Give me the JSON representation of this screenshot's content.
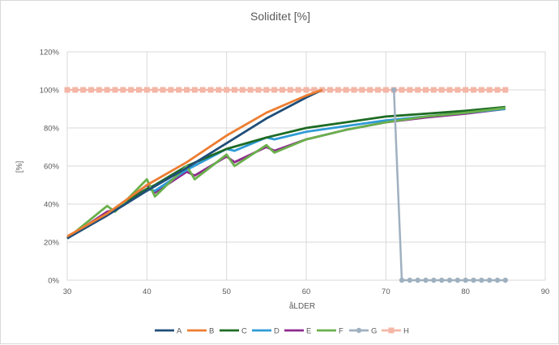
{
  "chart_data": {
    "type": "line",
    "title": "Soliditet [%]",
    "xlabel": "åLDER",
    "ylabel": "[%]",
    "xlim": [
      30,
      90
    ],
    "ylim": [
      0,
      1.2
    ],
    "x_ticks": [
      "30",
      "40",
      "50",
      "60",
      "70",
      "80",
      "90"
    ],
    "y_ticks": [
      "0%",
      "20%",
      "40%",
      "60%",
      "80%",
      "100%",
      "120%"
    ],
    "grid": "vertical and horizontal major gridlines",
    "legend_position": "bottom",
    "series": [
      {
        "name": "A",
        "color": "#1f4e79",
        "marker": "none",
        "x": [
          30,
          35,
          40,
          45,
          50,
          55,
          60,
          62
        ],
        "y": [
          0.22,
          0.34,
          0.47,
          0.59,
          0.72,
          0.85,
          0.96,
          1.0
        ]
      },
      {
        "name": "B",
        "color": "#ed7d31",
        "marker": "none",
        "x": [
          30,
          35,
          40,
          45,
          50,
          55,
          60,
          62
        ],
        "y": [
          0.23,
          0.35,
          0.5,
          0.62,
          0.76,
          0.88,
          0.97,
          1.0
        ]
      },
      {
        "name": "C",
        "color": "#1e6b24",
        "marker": "none",
        "x": [
          30,
          35,
          40,
          41,
          45,
          50,
          55,
          60,
          65,
          70,
          75,
          80,
          85
        ],
        "y": [
          0.22,
          0.35,
          0.48,
          0.5,
          0.6,
          0.69,
          0.75,
          0.8,
          0.83,
          0.86,
          0.875,
          0.89,
          0.91
        ]
      },
      {
        "name": "D",
        "color": "#2e9bd6",
        "marker": "none",
        "x": [
          30,
          35,
          40,
          41,
          45,
          50,
          51,
          55,
          56,
          60,
          65,
          70,
          75,
          80,
          85
        ],
        "y": [
          0.22,
          0.35,
          0.48,
          0.47,
          0.58,
          0.69,
          0.68,
          0.75,
          0.74,
          0.78,
          0.81,
          0.84,
          0.86,
          0.88,
          0.9
        ]
      },
      {
        "name": "E",
        "color": "#8e2a8e",
        "marker": "none",
        "x": [
          30,
          35,
          36,
          40,
          41,
          45,
          46,
          50,
          51,
          55,
          56,
          60,
          65,
          70,
          75,
          80,
          85
        ],
        "y": [
          0.22,
          0.36,
          0.37,
          0.5,
          0.46,
          0.57,
          0.55,
          0.65,
          0.62,
          0.7,
          0.68,
          0.74,
          0.79,
          0.83,
          0.855,
          0.875,
          0.9
        ]
      },
      {
        "name": "F",
        "color": "#6ab04c",
        "marker": "none",
        "x": [
          30,
          35,
          36,
          40,
          41,
          45,
          46,
          50,
          51,
          55,
          56,
          60,
          65,
          70,
          75,
          80,
          85
        ],
        "y": [
          0.22,
          0.39,
          0.36,
          0.53,
          0.44,
          0.6,
          0.53,
          0.66,
          0.6,
          0.71,
          0.67,
          0.74,
          0.79,
          0.83,
          0.86,
          0.88,
          0.905
        ]
      },
      {
        "name": "G",
        "color": "#9fb0c0",
        "marker": "circle",
        "x": [
          71,
          72,
          73,
          74,
          75,
          76,
          77,
          78,
          79,
          80,
          81,
          82,
          83,
          84,
          85
        ],
        "y": [
          1.0,
          0.0,
          0.0,
          0.0,
          0.0,
          0.0,
          0.0,
          0.0,
          0.0,
          0.0,
          0.0,
          0.0,
          0.0,
          0.0,
          0.0
        ]
      },
      {
        "name": "H",
        "color": "#f4b6a6",
        "marker": "square",
        "x": [
          30,
          31,
          32,
          33,
          34,
          35,
          36,
          37,
          38,
          39,
          40,
          41,
          42,
          43,
          44,
          45,
          46,
          47,
          48,
          49,
          50,
          51,
          52,
          53,
          54,
          55,
          56,
          57,
          58,
          59,
          60,
          61,
          62,
          63,
          64,
          65,
          66,
          67,
          68,
          69,
          70,
          71,
          72,
          73,
          74,
          75,
          76,
          77,
          78,
          79,
          80,
          81,
          82,
          83,
          84,
          85
        ],
        "y": [
          1,
          1,
          1,
          1,
          1,
          1,
          1,
          1,
          1,
          1,
          1,
          1,
          1,
          1,
          1,
          1,
          1,
          1,
          1,
          1,
          1,
          1,
          1,
          1,
          1,
          1,
          1,
          1,
          1,
          1,
          1,
          1,
          1,
          1,
          1,
          1,
          1,
          1,
          1,
          1,
          1,
          1,
          1,
          1,
          1,
          1,
          1,
          1,
          1,
          1,
          1,
          1,
          1,
          1,
          1,
          1
        ]
      }
    ]
  }
}
